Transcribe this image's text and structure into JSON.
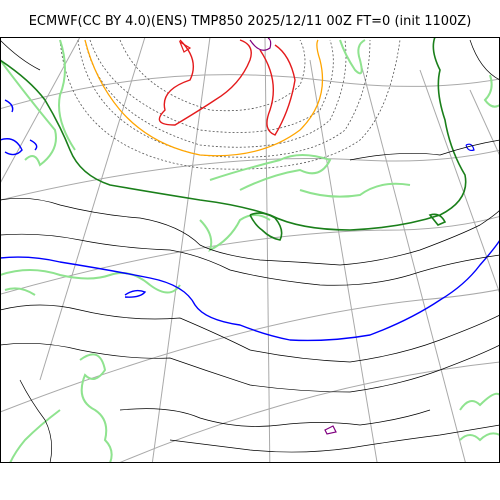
{
  "title": "ECMWF(CC BY 4.0)(ENS) TMP850 2025/12/11 00Z FT=0 (init 1100Z)",
  "map": {
    "projection": "polar stereographic",
    "field": "850 hPa temperature contours",
    "colors": {
      "graticule": "#a9a9a9",
      "isotherm_default": "#000000",
      "isotherm_dotted": "#555555",
      "isotherm_red": "#e41a1c",
      "isotherm_orange": "#ffa500",
      "isotherm_green_dark": "#1a7f1a",
      "isotherm_green_light": "#8fe38f",
      "isotherm_blue": "#0000ff",
      "isotherm_purple": "#800080",
      "frame": "#000000"
    }
  }
}
